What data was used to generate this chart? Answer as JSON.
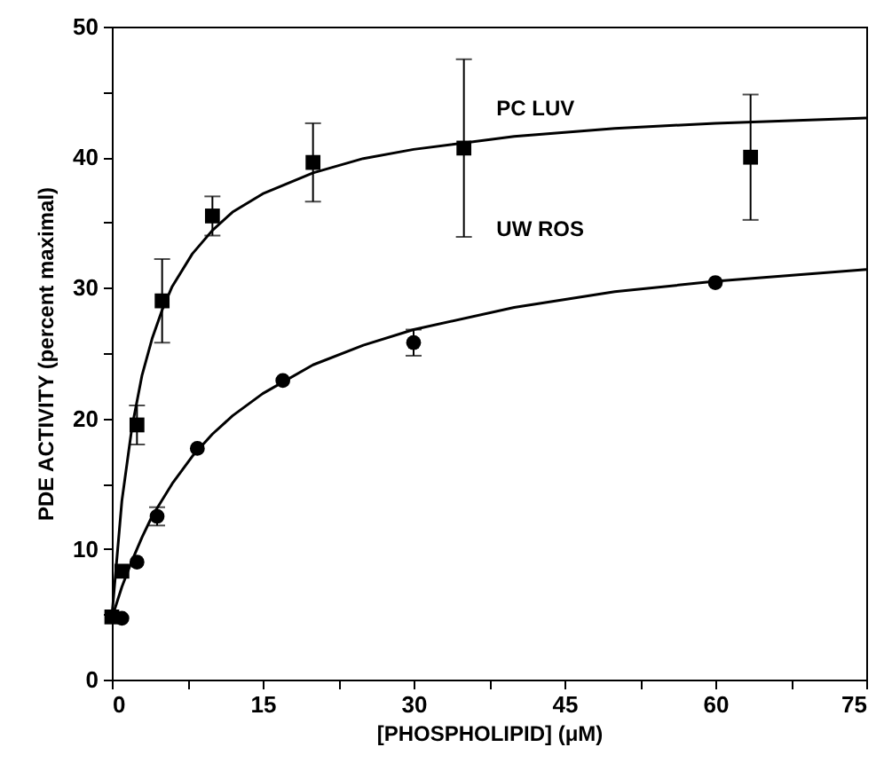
{
  "chart_data": {
    "type": "scatter",
    "xlabel": "[PHOSPHOLIPID] (μM)",
    "ylabel": "PDE ACTIVITY (percent maximal)",
    "xlim": [
      0,
      75
    ],
    "ylim": [
      0,
      50
    ],
    "xticks": [
      0,
      {
        "value": 7.5,
        "label": null
      },
      15,
      {
        "value": 22.5,
        "label": null
      },
      30,
      {
        "value": 37.5,
        "label": null
      },
      45,
      {
        "value": 52.5,
        "label": null
      },
      60,
      {
        "value": 67.5,
        "label": null
      },
      75
    ],
    "yticks": [
      0,
      {
        "value": 5,
        "label": null
      },
      10,
      {
        "value": 15,
        "label": null
      },
      20,
      {
        "value": 25,
        "label": null
      },
      30,
      {
        "value": 35,
        "label": null
      },
      40,
      {
        "value": 45,
        "label": null
      },
      50
    ],
    "grid": false,
    "series": [
      {
        "type": "line",
        "name": "PC LUV",
        "color": "#000000",
        "x": [
          0,
          1,
          2,
          3,
          4,
          5,
          6,
          8,
          10,
          12,
          15,
          20,
          25,
          30,
          40,
          50,
          60,
          75
        ],
        "values": [
          4.8,
          13.7,
          19.3,
          23.3,
          26.1,
          28.3,
          30.1,
          32.6,
          34.4,
          35.8,
          37.2,
          38.8,
          39.9,
          40.6,
          41.6,
          42.2,
          42.6,
          43.0
        ]
      },
      {
        "type": "line",
        "name": "UW ROS",
        "color": "#000000",
        "x": [
          0,
          1,
          2,
          3,
          4,
          6,
          8,
          10,
          12,
          15,
          20,
          25,
          30,
          40,
          50,
          60,
          75
        ],
        "values": [
          4.7,
          7.1,
          9.1,
          10.9,
          12.5,
          15.0,
          17.1,
          18.8,
          20.2,
          21.9,
          24.1,
          25.6,
          26.8,
          28.5,
          29.7,
          30.5,
          31.4
        ]
      },
      {
        "marker": "circle",
        "color": "#000000",
        "x": [
          1,
          2.5,
          4.5,
          8.5,
          17,
          30,
          60
        ],
        "values": [
          4.7,
          9,
          12.5,
          17.7,
          22.9,
          25.8,
          30.4
        ],
        "errors": [
          null,
          null,
          0.7,
          null,
          null,
          1,
          null
        ]
      },
      {
        "marker": "square",
        "color": "#000000",
        "x": [
          0,
          1,
          2.5,
          5,
          10,
          20,
          35,
          63.5
        ],
        "values": [
          4.8,
          8.3,
          19.5,
          29,
          35.5,
          39.6,
          40.7,
          40
        ],
        "errors": [
          null,
          null,
          1.5,
          3.2,
          1.5,
          3,
          6.8,
          4.8
        ]
      }
    ]
  }
}
